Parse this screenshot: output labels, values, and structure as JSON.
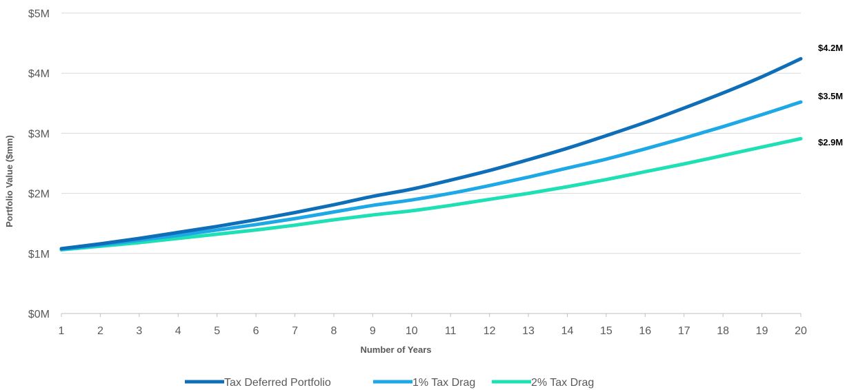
{
  "chart_data": {
    "type": "line",
    "title": "",
    "xlabel": "Number of Years",
    "ylabel": "Portfolio Value ($mm)",
    "x": [
      1,
      2,
      3,
      4,
      5,
      6,
      7,
      8,
      9,
      10,
      11,
      12,
      13,
      14,
      15,
      16,
      17,
      18,
      19,
      20
    ],
    "xlim": [
      1,
      20
    ],
    "ylim": [
      0,
      5
    ],
    "yticks": [
      {
        "value": 0,
        "label": "$0M"
      },
      {
        "value": 1,
        "label": "$1M"
      },
      {
        "value": 2,
        "label": "$2M"
      },
      {
        "value": 3,
        "label": "$3M"
      },
      {
        "value": 4,
        "label": "$4M"
      },
      {
        "value": 5,
        "label": "$5M"
      }
    ],
    "grid": true,
    "legend_position": "bottom",
    "series": [
      {
        "name": "Tax Deferred Portfolio",
        "color": "#0e6eb8",
        "values": [
          1.08,
          1.16,
          1.25,
          1.35,
          1.45,
          1.56,
          1.68,
          1.81,
          1.95,
          2.07,
          2.22,
          2.38,
          2.56,
          2.75,
          2.96,
          3.18,
          3.42,
          3.67,
          3.94,
          4.24
        ],
        "end_label": "$4.2M"
      },
      {
        "name": "1% Tax Drag",
        "color": "#1ea8e6",
        "values": [
          1.07,
          1.14,
          1.22,
          1.3,
          1.39,
          1.48,
          1.58,
          1.69,
          1.8,
          1.89,
          2.0,
          2.13,
          2.27,
          2.42,
          2.57,
          2.74,
          2.92,
          3.11,
          3.31,
          3.52
        ],
        "end_label": "$3.5M"
      },
      {
        "name": "2% Tax Drag",
        "color": "#1ee0b4",
        "values": [
          1.06,
          1.12,
          1.18,
          1.25,
          1.32,
          1.39,
          1.47,
          1.56,
          1.64,
          1.71,
          1.8,
          1.9,
          2.0,
          2.11,
          2.23,
          2.36,
          2.49,
          2.63,
          2.77,
          2.91
        ],
        "end_label": "$2.9M"
      }
    ]
  }
}
